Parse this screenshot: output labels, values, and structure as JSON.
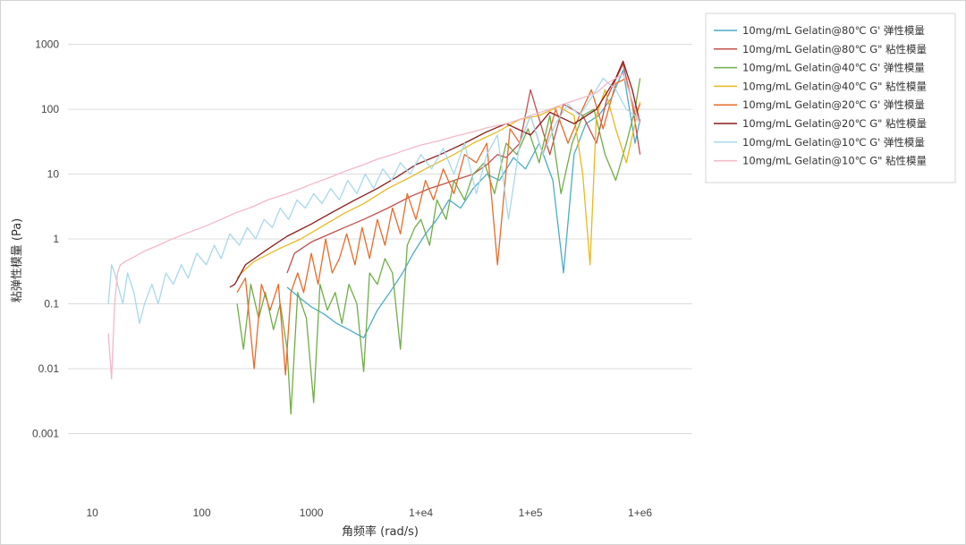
{
  "chart_data": {
    "type": "line",
    "title": "",
    "xlabel": "角频率 (rad/s)",
    "ylabel": "粘弹性模量 (Pa)",
    "xscale": "log",
    "yscale": "log",
    "xlim": [
      6,
      3000000
    ],
    "ylim": [
      0.0001,
      3000
    ],
    "grid": "horizontal",
    "legend_position": "right",
    "x_ticks": [
      {
        "value": 10,
        "label": "10"
      },
      {
        "value": 100,
        "label": "100"
      },
      {
        "value": 1000,
        "label": "1000"
      },
      {
        "value": 10000,
        "label": "1+e4"
      },
      {
        "value": 100000,
        "label": "1+e5"
      },
      {
        "value": 1000000,
        "label": "1+e6"
      }
    ],
    "y_ticks": [
      {
        "value": 1000,
        "label": "1000"
      },
      {
        "value": 100,
        "label": "100"
      },
      {
        "value": 10,
        "label": "10"
      },
      {
        "value": 1,
        "label": "1"
      },
      {
        "value": 0.1,
        "label": "0.1"
      },
      {
        "value": 0.01,
        "label": "0.01"
      },
      {
        "value": 0.001,
        "label": "0.001"
      }
    ],
    "series": [
      {
        "name": "10mg/mL Gelatin@80℃ G' 弹性模量",
        "color": "#4bacc6",
        "x": [
          600,
          800,
          1000,
          1300,
          1700,
          2200,
          3000,
          4000,
          5200,
          6800,
          8500,
          11000,
          14000,
          18000,
          23000,
          30000,
          40000,
          52000,
          70000,
          90000,
          120000,
          160000,
          200000,
          250000,
          320000,
          420000,
          550000,
          700000,
          900000,
          1000000
        ],
        "y": [
          0.18,
          0.12,
          0.09,
          0.07,
          0.05,
          0.04,
          0.03,
          0.08,
          0.15,
          0.3,
          0.6,
          1.2,
          2,
          4,
          3,
          6,
          10,
          8,
          18,
          12,
          30,
          8,
          0.3,
          20,
          60,
          80,
          150,
          400,
          30,
          70
        ]
      },
      {
        "name": "10mg/mL Gelatin@80℃ G\" 粘性模量",
        "color": "#c0504d",
        "x": [
          600,
          700,
          1000,
          2000,
          3000,
          5000,
          8000,
          12000,
          16000,
          20000,
          30000,
          40000,
          50000,
          60000,
          80000,
          100000,
          150000,
          200000,
          300000,
          400000,
          500000,
          700000,
          850000,
          1000000
        ],
        "y": [
          0.3,
          0.6,
          0.9,
          1.5,
          2,
          3,
          4.5,
          6,
          7,
          8,
          10,
          14,
          20,
          18,
          30,
          200,
          20,
          120,
          80,
          30,
          150,
          500,
          120,
          20
        ]
      },
      {
        "name": "10mg/mL Gelatin@40℃ G' 弹性模量",
        "color": "#70ad47",
        "x": [
          210,
          240,
          280,
          330,
          380,
          450,
          520,
          600,
          650,
          750,
          900,
          1050,
          1200,
          1400,
          1650,
          1900,
          2200,
          2600,
          3000,
          3400,
          4000,
          4700,
          5500,
          6500,
          7500,
          8800,
          10000,
          12000,
          14000,
          17000,
          20000,
          25000,
          30000,
          38000,
          47000,
          60000,
          75000,
          95000,
          120000,
          150000,
          190000,
          240000,
          300000,
          380000,
          480000,
          600000,
          750000,
          900000,
          1000000
        ],
        "y": [
          0.1,
          0.02,
          0.2,
          0.06,
          0.15,
          0.04,
          0.1,
          0.02,
          0.002,
          0.15,
          0.06,
          0.003,
          0.2,
          0.08,
          0.15,
          0.05,
          0.2,
          0.1,
          0.009,
          0.3,
          0.2,
          0.5,
          0.3,
          0.02,
          0.8,
          1.5,
          2,
          0.8,
          4,
          2,
          8,
          4,
          10,
          15,
          5,
          30,
          20,
          50,
          15,
          80,
          5,
          30,
          80,
          100,
          20,
          8,
          30,
          100,
          300
        ]
      },
      {
        "name": "10mg/mL Gelatin@40℃ G\" 粘性模量",
        "color": "#e8b820",
        "x": [
          210,
          230,
          300,
          500,
          800,
          1200,
          2000,
          3000,
          5000,
          8000,
          12000,
          20000,
          30000,
          50000,
          80000,
          120000,
          180000,
          250000,
          300000,
          350000,
          400000,
          480000,
          600000,
          750000,
          900000,
          1000000
        ],
        "y": [
          0.25,
          0.3,
          0.45,
          0.7,
          1,
          1.5,
          2.5,
          3.5,
          6,
          9,
          13,
          20,
          30,
          45,
          70,
          80,
          110,
          80,
          10,
          0.4,
          80,
          200,
          50,
          15,
          60,
          130
        ]
      },
      {
        "name": "10mg/mL Gelatin@20℃ G' 弹性模量",
        "color": "#e46c2a",
        "x": [
          210,
          250,
          300,
          350,
          420,
          500,
          580,
          650,
          750,
          850,
          1000,
          1150,
          1350,
          1550,
          1800,
          2100,
          2500,
          2900,
          3400,
          4000,
          4700,
          5500,
          6500,
          7500,
          9000,
          11000,
          13000,
          16000,
          20000,
          25000,
          32000,
          40000,
          50000,
          65000,
          80000,
          100000,
          130000,
          170000,
          220000,
          280000,
          360000,
          460000,
          600000,
          750000,
          900000,
          1000000
        ],
        "y": [
          0.15,
          0.25,
          0.01,
          0.2,
          0.08,
          0.2,
          0.008,
          0.15,
          0.3,
          0.15,
          0.6,
          0.2,
          1,
          0.3,
          0.5,
          1.2,
          0.4,
          1.5,
          0.5,
          2,
          0.8,
          3,
          1.2,
          5,
          2,
          8,
          4,
          12,
          5,
          20,
          15,
          30,
          0.4,
          50,
          30,
          80,
          20,
          100,
          30,
          80,
          200,
          50,
          250,
          300,
          80,
          120
        ]
      },
      {
        "name": "10mg/mL Gelatin@20℃ G\" 粘性模量",
        "color": "#8b1a1a",
        "x": [
          180,
          200,
          250,
          400,
          600,
          1000,
          1500,
          2500,
          4000,
          6000,
          9000,
          15000,
          25000,
          40000,
          60000,
          100000,
          150000,
          250000,
          400000,
          600000,
          700000,
          850000,
          1000000
        ],
        "y": [
          0.18,
          0.2,
          0.4,
          0.7,
          1.1,
          1.7,
          2.5,
          4,
          6,
          9,
          14,
          20,
          30,
          45,
          60,
          40,
          90,
          60,
          100,
          300,
          550,
          200,
          60
        ]
      },
      {
        "name": "10mg/mL Gelatin@10℃ G' 弹性模量",
        "color": "#a8d8e8",
        "x": [
          14,
          15,
          16,
          17,
          19,
          21,
          24,
          27,
          30,
          35,
          40,
          47,
          55,
          65,
          75,
          90,
          110,
          130,
          150,
          180,
          220,
          260,
          310,
          370,
          440,
          520,
          620,
          740,
          880,
          1050,
          1250,
          1500,
          1800,
          2150,
          2600,
          3100,
          3700,
          4500,
          5400,
          6500,
          8000,
          10000,
          12500,
          16000,
          20000,
          25000,
          32000,
          40000,
          50000,
          63000,
          80000,
          100000,
          130000,
          170000,
          220000,
          280000,
          360000,
          460000,
          600000,
          750000,
          900000,
          1000000
        ],
        "y": [
          0.1,
          0.4,
          0.3,
          0.2,
          0.1,
          0.3,
          0.15,
          0.05,
          0.1,
          0.2,
          0.1,
          0.3,
          0.2,
          0.4,
          0.25,
          0.6,
          0.4,
          0.8,
          0.5,
          1.2,
          0.8,
          1.5,
          1,
          2,
          1.5,
          3,
          2,
          4,
          3,
          5,
          3.5,
          6,
          4,
          8,
          5,
          10,
          6,
          12,
          8,
          15,
          10,
          20,
          12,
          25,
          10,
          30,
          5,
          20,
          40,
          2,
          30,
          80,
          20,
          60,
          120,
          80,
          150,
          300,
          200,
          100,
          80,
          60
        ]
      },
      {
        "name": "10mg/mL Gelatin@10℃ G\" 粘性模量",
        "color": "#f2b8c6",
        "x": [
          14,
          15,
          16,
          17,
          18,
          20,
          25,
          30,
          40,
          50,
          70,
          100,
          150,
          200,
          300,
          400,
          600,
          800,
          1000,
          1500,
          2000,
          3000,
          4000,
          6000,
          8000,
          10000,
          15000,
          20000,
          30000,
          40000,
          60000,
          80000,
          100000,
          150000,
          200000,
          300000,
          400000,
          500000,
          700000,
          1000000
        ],
        "y": [
          0.035,
          0.007,
          0.1,
          0.3,
          0.4,
          0.45,
          0.55,
          0.65,
          0.8,
          0.95,
          1.2,
          1.5,
          2,
          2.5,
          3.2,
          4,
          5,
          6,
          7,
          9,
          11,
          14,
          17,
          21,
          25,
          28,
          33,
          38,
          45,
          52,
          60,
          70,
          80,
          100,
          120,
          150,
          180,
          250,
          350,
          60
        ]
      }
    ]
  }
}
